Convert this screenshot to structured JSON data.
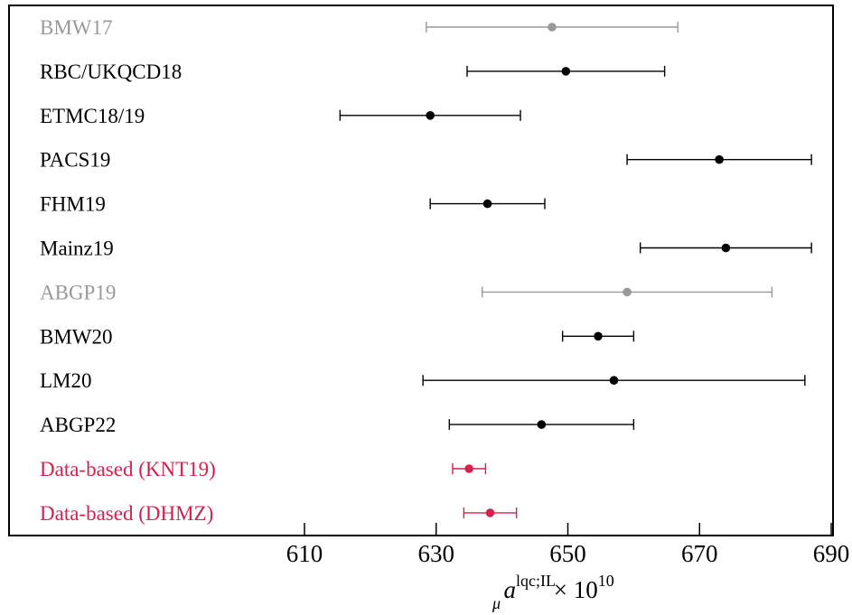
{
  "chart_data": {
    "type": "scatter",
    "xlabel": {
      "base": "a",
      "sub": "μ",
      "sup": "lqc;IL",
      "suffix": " × 10",
      "suffix_sup": "10"
    },
    "xlim": [
      596,
      696
    ],
    "xticks": [
      610,
      630,
      650,
      670,
      690
    ],
    "grid": false,
    "colors": {
      "black": "#000000",
      "gray": "#999999",
      "red": "#d6204e"
    },
    "entries": [
      {
        "label": "BMW17",
        "value": 647.6,
        "err_low": 628.5,
        "err_high": 666.7,
        "color": "gray"
      },
      {
        "label": "RBC/UKQCD18",
        "value": 649.7,
        "err_low": 634.7,
        "err_high": 664.7,
        "color": "black"
      },
      {
        "label": "ETMC18/19",
        "value": 629.1,
        "err_low": 615.4,
        "err_high": 642.8,
        "color": "black"
      },
      {
        "label": "PACS19",
        "value": 673.0,
        "err_low": 659.0,
        "err_high": 687.0,
        "color": "black"
      },
      {
        "label": "FHM19",
        "value": 637.8,
        "err_low": 629.1,
        "err_high": 646.5,
        "color": "black"
      },
      {
        "label": "Mainz19",
        "value": 674.0,
        "err_low": 661.0,
        "err_high": 687.0,
        "color": "black"
      },
      {
        "label": "ABGP19",
        "value": 659.0,
        "err_low": 637.0,
        "err_high": 681.0,
        "color": "gray"
      },
      {
        "label": "BMW20",
        "value": 654.6,
        "err_low": 649.2,
        "err_high": 660.0,
        "color": "black"
      },
      {
        "label": "LM20",
        "value": 657.0,
        "err_low": 628.0,
        "err_high": 686.0,
        "color": "black"
      },
      {
        "label": "ABGP22",
        "value": 646.0,
        "err_low": 632.0,
        "err_high": 660.0,
        "color": "black"
      },
      {
        "label": "Data-based (KNT19)",
        "value": 635.0,
        "err_low": 632.5,
        "err_high": 637.5,
        "color": "red"
      },
      {
        "label": "Data-based (DHMZ)",
        "value": 638.2,
        "err_low": 634.2,
        "err_high": 642.2,
        "color": "red"
      }
    ]
  }
}
